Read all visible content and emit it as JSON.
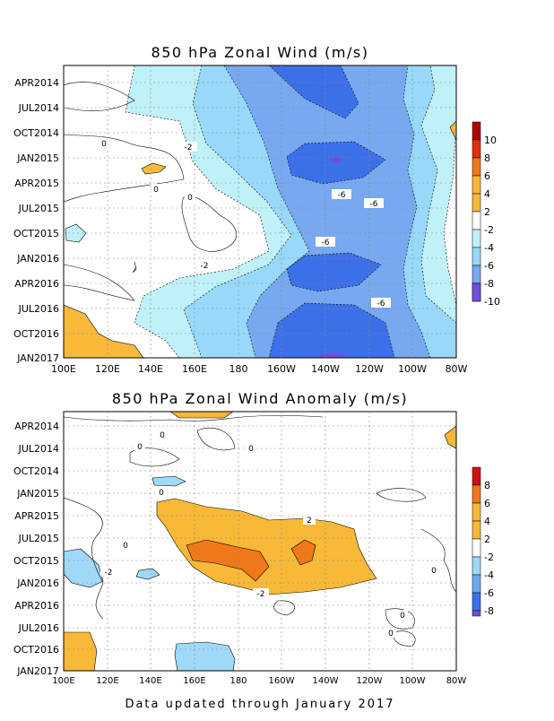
{
  "chart_data": [
    {
      "type": "heatmap",
      "title": "850 hPa Zonal Wind (m/s)",
      "x_ticks": [
        "100E",
        "120E",
        "140E",
        "160E",
        "180",
        "160W",
        "140W",
        "120W",
        "100W",
        "80W"
      ],
      "y_ticks": [
        "APR2014",
        "JUL2014",
        "OCT2014",
        "JAN2015",
        "APR2015",
        "JUL2015",
        "OCT2015",
        "JAN2016",
        "APR2016",
        "JUL2016",
        "OCT2016",
        "JAN2017"
      ],
      "colorbar": {
        "labels": [
          "10",
          "8",
          "6",
          "4",
          "2",
          "-2",
          "-4",
          "-6",
          "-8",
          "-10"
        ],
        "colors": [
          "#b00000",
          "#e03010",
          "#f07818",
          "#f8b838",
          "#ffffff",
          "#c0f0f8",
          "#98d8f8",
          "#78a8f0",
          "#3c70e8",
          "#7050d8"
        ]
      },
      "contour_labels": [
        "0",
        "-2",
        "0",
        "-2",
        "0",
        "-2",
        "0",
        "-6",
        "-6",
        "-6",
        "-6"
      ],
      "grid": true
    },
    {
      "type": "heatmap",
      "title": "850 hPa Zonal Wind Anomaly (m/s)",
      "x_ticks": [
        "100E",
        "120E",
        "140E",
        "160E",
        "180",
        "160W",
        "140W",
        "120W",
        "100W",
        "80W"
      ],
      "y_ticks": [
        "APR2014",
        "JUL2014",
        "OCT2014",
        "JAN2015",
        "APR2015",
        "JUL2015",
        "OCT2015",
        "JAN2016",
        "APR2016",
        "JUL2016",
        "OCT2016",
        "JAN2017"
      ],
      "colorbar": {
        "labels": [
          "8",
          "6",
          "4",
          "2",
          "-2",
          "-4",
          "-6",
          "-8"
        ],
        "colors": [
          "#d01010",
          "#f07818",
          "#f8b838",
          "#ffffff",
          "#a0d8f8",
          "#70a8f0",
          "#3c70e8",
          "#7050d8"
        ]
      },
      "contour_labels": [
        "0",
        "0",
        "0",
        "0",
        "-2",
        "2",
        "-2",
        "0",
        "0",
        "0",
        "0"
      ],
      "grid": true
    }
  ],
  "footer": "Data updated through January 2017"
}
